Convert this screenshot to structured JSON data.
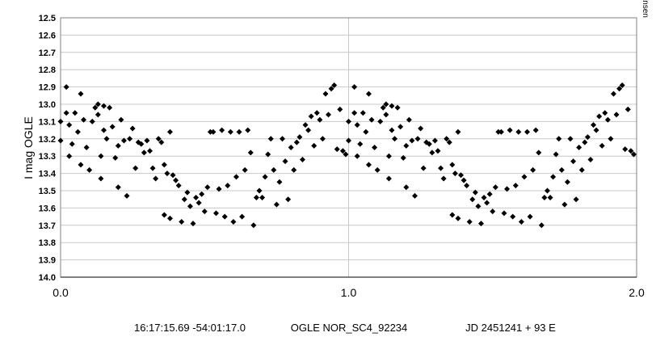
{
  "chart_data": {
    "type": "scatter",
    "y_label": "I mag OGLE",
    "side_note": "Period analysis R. Jansen",
    "footer": [
      "16:17:15.69 -54:01:17.0",
      "OGLE NOR_SC4_92234",
      "JD 2451241 + 93 E"
    ],
    "xlim": [
      0,
      2
    ],
    "ylim": [
      14.0,
      12.5
    ],
    "xticks": [
      {
        "value": 0,
        "label": "0.0"
      },
      {
        "value": 1,
        "label": "1.0"
      },
      {
        "value": 2,
        "label": "2.0"
      }
    ],
    "yticks": [
      12.5,
      12.6,
      12.7,
      12.8,
      12.9,
      {
        "value": 13,
        "label": "13.0"
      },
      13.1,
      13.2,
      13.3,
      13.4,
      13.5,
      13.6,
      13.7,
      13.8,
      13.9,
      {
        "value": 14,
        "label": "14.0"
      }
    ],
    "grid": true,
    "x": [
      0.0,
      0.0,
      0.02,
      0.02,
      0.03,
      0.03,
      0.04,
      0.05,
      0.06,
      0.07,
      0.07,
      0.08,
      0.09,
      0.1,
      0.11,
      0.12,
      0.13,
      0.13,
      0.14,
      0.14,
      0.15,
      0.15,
      0.16,
      0.17,
      0.18,
      0.19,
      0.2,
      0.2,
      0.21,
      0.22,
      0.23,
      0.24,
      0.25,
      0.26,
      0.27,
      0.28,
      0.29,
      0.3,
      0.31,
      0.32,
      0.33,
      0.34,
      0.35,
      0.36,
      0.36,
      0.37,
      0.38,
      0.38,
      0.39,
      0.4,
      0.41,
      0.42,
      0.43,
      0.44,
      0.45,
      0.46,
      0.47,
      0.48,
      0.49,
      0.5,
      0.51,
      0.52,
      0.53,
      0.54,
      0.55,
      0.56,
      0.57,
      0.58,
      0.59,
      0.6,
      0.61,
      0.62,
      0.63,
      0.64,
      0.65,
      0.66,
      0.67,
      0.68,
      0.69,
      0.7,
      0.71,
      0.72,
      0.73,
      0.74,
      0.75,
      0.76,
      0.77,
      0.78,
      0.79,
      0.8,
      0.81,
      0.82,
      0.83,
      0.84,
      0.85,
      0.86,
      0.87,
      0.88,
      0.89,
      0.9,
      0.91,
      0.92,
      0.93,
      0.94,
      0.95,
      0.96,
      0.97,
      0.98,
      0.99,
      1.0,
      1.0,
      1.02,
      1.02,
      1.03,
      1.03,
      1.04,
      1.05,
      1.06,
      1.07,
      1.07,
      1.08,
      1.09,
      1.1,
      1.11,
      1.12,
      1.13,
      1.13,
      1.14,
      1.14,
      1.15,
      1.15,
      1.16,
      1.17,
      1.18,
      1.19,
      1.2,
      1.2,
      1.21,
      1.22,
      1.23,
      1.24,
      1.25,
      1.26,
      1.27,
      1.28,
      1.29,
      1.3,
      1.31,
      1.32,
      1.33,
      1.34,
      1.35,
      1.36,
      1.36,
      1.37,
      1.38,
      1.38,
      1.39,
      1.4,
      1.41,
      1.42,
      1.43,
      1.44,
      1.45,
      1.46,
      1.47,
      1.48,
      1.49,
      1.5,
      1.51,
      1.52,
      1.53,
      1.54,
      1.55,
      1.56,
      1.57,
      1.58,
      1.59,
      1.6,
      1.61,
      1.62,
      1.63,
      1.64,
      1.65,
      1.66,
      1.67,
      1.68,
      1.69,
      1.7,
      1.71,
      1.72,
      1.73,
      1.74,
      1.75,
      1.76,
      1.77,
      1.78,
      1.79,
      1.8,
      1.81,
      1.82,
      1.83,
      1.84,
      1.85,
      1.86,
      1.87,
      1.88,
      1.89,
      1.9,
      1.91,
      1.92,
      1.93,
      1.94,
      1.95,
      1.96,
      1.97,
      1.98,
      1.99
    ],
    "series": [
      {
        "color": "#000000",
        "values": [
          13.1,
          13.21,
          12.9,
          13.05,
          13.12,
          13.3,
          13.23,
          13.05,
          13.16,
          13.35,
          12.94,
          13.09,
          13.25,
          13.38,
          13.1,
          13.02,
          13.0,
          13.06,
          13.43,
          13.3,
          13.01,
          13.15,
          13.2,
          13.02,
          13.13,
          13.31,
          13.24,
          13.48,
          13.09,
          13.21,
          13.53,
          13.2,
          13.14,
          13.37,
          13.22,
          13.23,
          13.28,
          13.21,
          13.27,
          13.37,
          13.43,
          13.2,
          13.22,
          13.64,
          13.35,
          13.4,
          13.16,
          13.66,
          13.41,
          13.44,
          13.47,
          13.68,
          13.55,
          13.51,
          13.59,
          13.69,
          13.54,
          13.57,
          13.52,
          13.62,
          13.48,
          13.16,
          13.16,
          13.63,
          13.49,
          13.15,
          13.65,
          13.47,
          13.16,
          13.68,
          13.42,
          13.16,
          13.65,
          13.38,
          13.15,
          13.28,
          13.7,
          13.54,
          13.5,
          13.54,
          13.42,
          13.29,
          13.2,
          13.38,
          13.58,
          13.45,
          13.2,
          13.33,
          13.55,
          13.25,
          13.38,
          13.22,
          13.19,
          13.32,
          13.12,
          13.15,
          13.07,
          13.24,
          13.05,
          13.09,
          13.2,
          12.94,
          13.06,
          12.91,
          12.89,
          13.26,
          13.03,
          13.27,
          13.29,
          13.1,
          13.21,
          12.9,
          13.05,
          13.12,
          13.3,
          13.23,
          13.05,
          13.16,
          13.35,
          12.94,
          13.09,
          13.25,
          13.38,
          13.1,
          13.02,
          13.0,
          13.06,
          13.43,
          13.3,
          13.01,
          13.15,
          13.2,
          13.02,
          13.13,
          13.31,
          13.24,
          13.48,
          13.09,
          13.21,
          13.53,
          13.2,
          13.14,
          13.37,
          13.22,
          13.23,
          13.28,
          13.21,
          13.27,
          13.37,
          13.43,
          13.2,
          13.22,
          13.64,
          13.35,
          13.4,
          13.16,
          13.66,
          13.41,
          13.44,
          13.47,
          13.68,
          13.55,
          13.51,
          13.59,
          13.69,
          13.54,
          13.57,
          13.52,
          13.62,
          13.48,
          13.16,
          13.16,
          13.63,
          13.49,
          13.15,
          13.65,
          13.47,
          13.16,
          13.68,
          13.42,
          13.16,
          13.65,
          13.38,
          13.15,
          13.28,
          13.7,
          13.54,
          13.5,
          13.54,
          13.42,
          13.29,
          13.2,
          13.38,
          13.58,
          13.45,
          13.2,
          13.33,
          13.55,
          13.25,
          13.38,
          13.22,
          13.19,
          13.32,
          13.12,
          13.15,
          13.07,
          13.24,
          13.05,
          13.09,
          13.2,
          12.94,
          13.06,
          12.91,
          12.89,
          13.26,
          13.03,
          13.27,
          13.29
        ]
      }
    ]
  }
}
